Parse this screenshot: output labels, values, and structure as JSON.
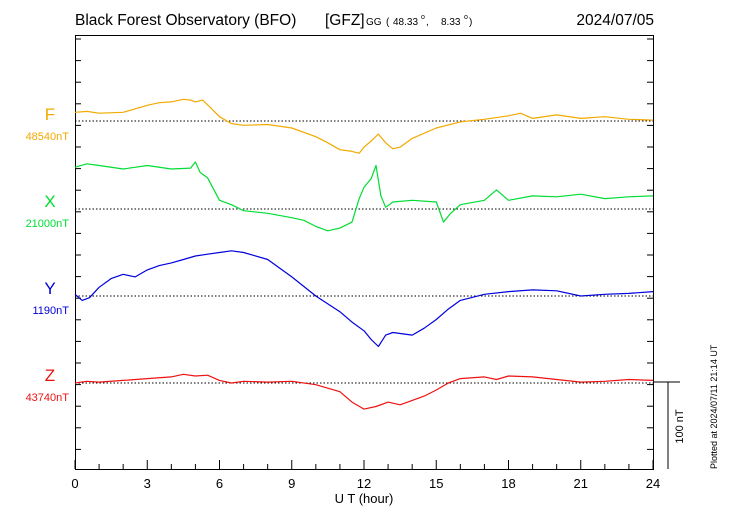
{
  "header": {
    "title": "Black Forest Observatory (BFO)",
    "agency": "[GFZ]",
    "coord_prefix": "GG",
    "coord_open": "(",
    "lat": "48.33",
    "lon": "8.33",
    "coord_close": ")",
    "date": "2024/07/05"
  },
  "footer": {
    "plotted_note": "Plotted at 2024/07/11 21:14 UT"
  },
  "chart_data": {
    "type": "line",
    "xlabel": "U T (hour)",
    "xlim": [
      0,
      24
    ],
    "x_ticks": [
      "0",
      "3",
      "6",
      "9",
      "12",
      "15",
      "18",
      "21",
      "24"
    ],
    "scale_bar_label": "100 nT",
    "scale_bar_nT": 100,
    "series": [
      {
        "name": "F",
        "baseline_label": "48540nT",
        "baseline_nT": 48540,
        "color": "#f2a900",
        "x": [
          0,
          0.5,
          1,
          2,
          3,
          3.5,
          4,
          4.5,
          4.8,
          5,
          5.3,
          5.6,
          6,
          6.5,
          7,
          8,
          9,
          10,
          10.5,
          11,
          11.5,
          11.8,
          12,
          12.3,
          12.6,
          12.9,
          13.2,
          13.5,
          14,
          15,
          16,
          17,
          18,
          18.5,
          19,
          20,
          21,
          22,
          23,
          24
        ],
        "values": [
          48550,
          48551,
          48549,
          48550,
          48558,
          48561,
          48562,
          48565,
          48564,
          48562,
          48564,
          48556,
          48545,
          48537,
          48535,
          48536,
          48532,
          48522,
          48515,
          48507,
          48505,
          48503,
          48510,
          48517,
          48525,
          48515,
          48508,
          48510,
          48520,
          48532,
          48539,
          48542,
          48546,
          48549,
          48543,
          48547,
          48543,
          48545,
          48542,
          48541
        ]
      },
      {
        "name": "X",
        "baseline_label": "21000nT",
        "baseline_nT": 21000,
        "color": "#00dd33",
        "x": [
          0,
          0.5,
          1,
          2,
          3,
          4,
          4.8,
          5,
          5.2,
          5.5,
          6,
          6.5,
          7,
          8,
          9,
          9.5,
          10,
          10.5,
          11,
          11.5,
          11.8,
          12,
          12.3,
          12.5,
          12.7,
          12.9,
          13.2,
          14,
          15,
          15.3,
          15.6,
          16,
          17,
          17.5,
          18,
          19,
          20,
          21,
          22,
          23,
          24
        ],
        "values": [
          21048,
          21052,
          21050,
          21046,
          21050,
          21046,
          21047,
          21054,
          21042,
          21036,
          21010,
          21005,
          20998,
          20995,
          20990,
          20987,
          20980,
          20975,
          20978,
          20985,
          21012,
          21025,
          21035,
          21050,
          21015,
          21002,
          21008,
          21010,
          21008,
          20985,
          20995,
          21005,
          21010,
          21022,
          21010,
          21015,
          21014,
          21017,
          21012,
          21014,
          21015
        ]
      },
      {
        "name": "Y",
        "baseline_label": "1190nT",
        "baseline_nT": 1190,
        "color": "#0000dd",
        "x": [
          0,
          0.3,
          0.6,
          1,
          1.5,
          2,
          2.5,
          3,
          3.5,
          4,
          4.5,
          5,
          5.5,
          6,
          6.5,
          7,
          8,
          9,
          10,
          11,
          11.5,
          12,
          12.3,
          12.6,
          12.9,
          13.2,
          14,
          14.5,
          15,
          15.5,
          16,
          17,
          18,
          19,
          20,
          21,
          22,
          23,
          24
        ],
        "values": [
          1192,
          1185,
          1188,
          1200,
          1210,
          1215,
          1212,
          1220,
          1225,
          1228,
          1232,
          1236,
          1238,
          1240,
          1242,
          1240,
          1232,
          1212,
          1190,
          1172,
          1160,
          1150,
          1140,
          1132,
          1145,
          1148,
          1145,
          1153,
          1163,
          1175,
          1185,
          1192,
          1195,
          1197,
          1196,
          1190,
          1192,
          1193,
          1195
        ]
      },
      {
        "name": "Z",
        "baseline_label": "43740nT",
        "baseline_nT": 43740,
        "color": "#ee1111",
        "x": [
          0,
          0.5,
          1,
          2,
          3,
          4,
          4.5,
          5,
          5.5,
          6,
          6.5,
          7,
          8,
          9,
          10,
          11,
          11.5,
          12,
          12.5,
          13,
          13.5,
          14,
          14.5,
          15,
          15.5,
          16,
          17,
          17.5,
          18,
          19,
          20,
          21,
          22,
          23,
          24
        ],
        "values": [
          43740,
          43742,
          43741,
          43743,
          43745,
          43747,
          43750,
          43748,
          43749,
          43743,
          43740,
          43742,
          43741,
          43742,
          43738,
          43730,
          43718,
          43710,
          43713,
          43718,
          43715,
          43720,
          43725,
          43732,
          43740,
          43745,
          43747,
          43744,
          43748,
          43747,
          43744,
          43741,
          43742,
          43744,
          43743
        ]
      }
    ]
  }
}
